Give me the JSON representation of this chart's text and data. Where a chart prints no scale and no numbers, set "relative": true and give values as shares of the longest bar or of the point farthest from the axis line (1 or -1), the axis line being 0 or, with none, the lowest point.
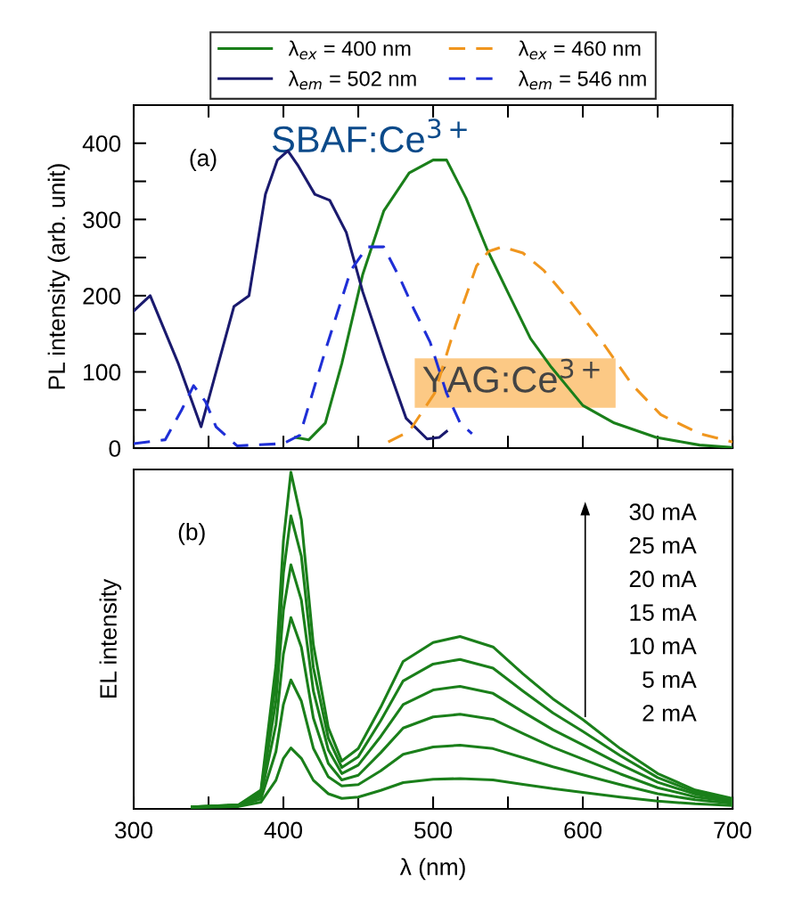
{
  "chart_data": [
    {
      "type": "line",
      "ylabel": "PL intensity (arb. unit)",
      "xlim": [
        300,
        700
      ],
      "ylim": [
        0,
        450
      ],
      "xticks": [
        300,
        {
          "value": 350,
          "label": null
        },
        400,
        {
          "value": 450,
          "label": null
        },
        500,
        {
          "value": 550,
          "label": null
        },
        600,
        {
          "value": 650,
          "label": null
        },
        700
      ],
      "yticks": [
        0,
        {
          "value": 50,
          "label": null
        },
        100,
        {
          "value": 150,
          "label": null
        },
        200,
        {
          "value": 250,
          "label": null
        },
        300,
        {
          "value": 350,
          "label": null
        },
        400
      ],
      "tick_labels": "y",
      "legend": "top",
      "grid": false,
      "annotations": [
        "(a)",
        "SBAF:Ce$^{3+}$",
        "YAG:Ce$^{3+}$"
      ],
      "series": [
        {
          "name": "λ$_{ex}$ = 400 nm",
          "color": "#1a7f1a",
          "line_style": "solid",
          "x": [
            408,
            417,
            428,
            439,
            453,
            467,
            484,
            500,
            509,
            522,
            536,
            551,
            565,
            579,
            600,
            621,
            649,
            678,
            700
          ],
          "values": [
            14,
            11,
            33,
            111,
            228,
            311,
            361,
            378,
            378,
            328,
            261,
            200,
            144,
            106,
            56,
            33,
            14,
            4,
            1
          ]
        },
        {
          "name": "λ$_{em}$ = 502 nm",
          "color": "#1a1a6e",
          "line_style": "solid",
          "x": [
            300,
            311,
            330,
            345,
            367,
            377,
            388,
            396,
            403,
            410,
            421,
            431,
            442,
            453,
            468,
            482,
            496,
            504,
            509
          ],
          "values": [
            180,
            200,
            110,
            28,
            186,
            200,
            333,
            378,
            390,
            370,
            333,
            325,
            283,
            205,
            117,
            39,
            12,
            14,
            22
          ]
        },
        {
          "name": "λ$_{ex}$ = 460 nm",
          "color": "#f0961e",
          "line_style": "dashed",
          "x": [
            470,
            484,
            501,
            515,
            529,
            537,
            546,
            560,
            574,
            593,
            613,
            633,
            652,
            678,
            700
          ],
          "values": [
            8,
            22,
            72,
            161,
            239,
            258,
            264,
            256,
            233,
            189,
            139,
            83,
            44,
            19,
            8
          ]
        },
        {
          "name": "λ$_{em}$ = 546 nm",
          "color": "#1f2fd6",
          "line_style": "dashed",
          "x": [
            300,
            321,
            332,
            340,
            348,
            355,
            369,
            400,
            411,
            428,
            445,
            456,
            467,
            478,
            487,
            498,
            509,
            518,
            526
          ],
          "values": [
            6,
            11,
            50,
            82,
            61,
            28,
            3,
            6,
            17,
            128,
            233,
            264,
            264,
            222,
            183,
            139,
            72,
            33,
            19
          ]
        }
      ]
    },
    {
      "type": "line",
      "xlabel": "λ (nm)",
      "ylabel": "EL intensity",
      "relative": true,
      "xlim": [
        300,
        700
      ],
      "xticks": [
        300,
        {
          "value": 350,
          "label": null
        },
        400,
        {
          "value": 450,
          "label": null
        },
        500,
        {
          "value": 550,
          "label": null
        },
        600,
        {
          "value": 650,
          "label": null
        },
        700
      ],
      "tick_labels": "x",
      "grid": false,
      "line_style": "solid",
      "annotations": [
        "(b)",
        "30 mA",
        "25 mA",
        "20 mA",
        "15 mA",
        "10 mA",
        "5 mA",
        "2 mA"
      ],
      "x": [
        339,
        370,
        385,
        395,
        400,
        405,
        412,
        420,
        430,
        439,
        450,
        465,
        480,
        500,
        518,
        540,
        560,
        580,
        600,
        625,
        650,
        675,
        700
      ],
      "series": [
        {
          "color": "#1a7f1a",
          "values": [
            0.006,
            0.012,
            0.056,
            0.426,
            0.796,
            1.0,
            0.858,
            0.488,
            0.241,
            0.142,
            0.179,
            0.302,
            0.438,
            0.494,
            0.512,
            0.481,
            0.401,
            0.327,
            0.265,
            0.179,
            0.105,
            0.056,
            0.031
          ]
        },
        {
          "color": "#1a7f1a",
          "values": [
            0.006,
            0.012,
            0.05,
            0.38,
            0.7,
            0.87,
            0.75,
            0.42,
            0.21,
            0.123,
            0.155,
            0.262,
            0.38,
            0.43,
            0.444,
            0.418,
            0.35,
            0.285,
            0.23,
            0.158,
            0.093,
            0.05,
            0.028
          ]
        },
        {
          "color": "#1a7f1a",
          "values": [
            0.006,
            0.011,
            0.045,
            0.32,
            0.59,
            0.725,
            0.62,
            0.35,
            0.175,
            0.105,
            0.13,
            0.215,
            0.31,
            0.353,
            0.364,
            0.343,
            0.288,
            0.235,
            0.19,
            0.132,
            0.079,
            0.044,
            0.025
          ]
        },
        {
          "color": "#1a7f1a",
          "values": [
            0.005,
            0.01,
            0.038,
            0.25,
            0.46,
            0.568,
            0.48,
            0.27,
            0.135,
            0.086,
            0.1,
            0.167,
            0.24,
            0.273,
            0.281,
            0.266,
            0.224,
            0.183,
            0.148,
            0.104,
            0.063,
            0.036,
            0.021
          ]
        },
        {
          "color": "#1a7f1a",
          "values": [
            0.005,
            0.009,
            0.03,
            0.17,
            0.31,
            0.383,
            0.32,
            0.18,
            0.095,
            0.068,
            0.072,
            0.113,
            0.162,
            0.184,
            0.189,
            0.179,
            0.152,
            0.125,
            0.101,
            0.072,
            0.045,
            0.027,
            0.016
          ]
        },
        {
          "color": "#1a7f1a",
          "values": [
            0.004,
            0.007,
            0.02,
            0.085,
            0.15,
            0.181,
            0.15,
            0.085,
            0.045,
            0.031,
            0.035,
            0.055,
            0.078,
            0.088,
            0.09,
            0.086,
            0.073,
            0.06,
            0.049,
            0.035,
            0.023,
            0.015,
            0.01
          ]
        }
      ]
    }
  ]
}
